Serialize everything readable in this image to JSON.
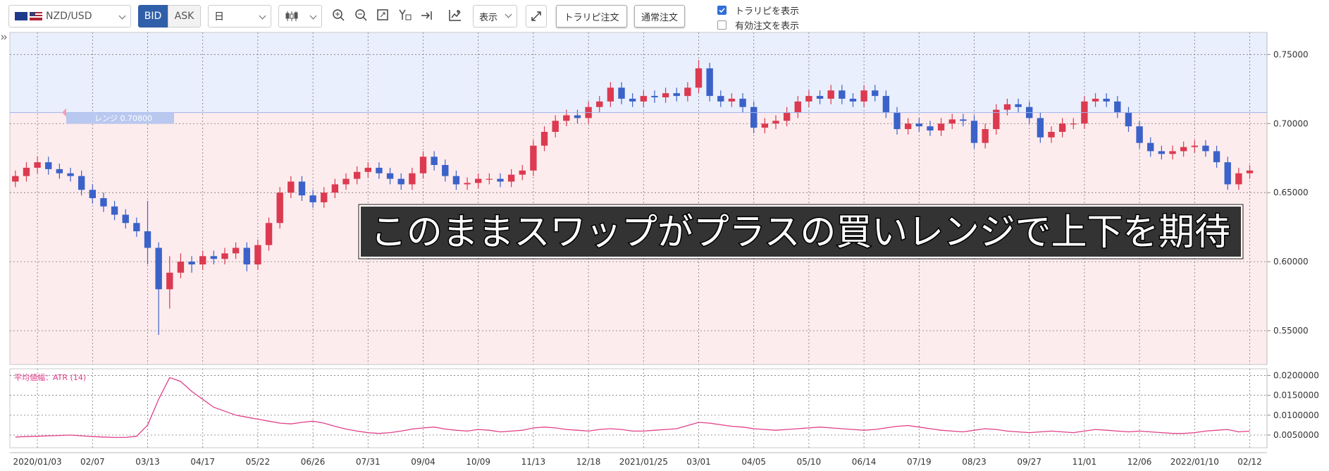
{
  "toolbar": {
    "pair": "NZD/USD",
    "bid": "BID",
    "ask": "ASK",
    "timeframe": "日",
    "display": "表示",
    "trarepi_order": "トラリピ注文",
    "normal_order": "通常注文",
    "options": [
      {
        "label": "トラリピを表示",
        "checked": true
      },
      {
        "label": "有効注文を表示",
        "checked": false
      }
    ]
  },
  "chart_data": [
    {
      "type": "candlestick",
      "annotation": "このままスワップがプラスの買いレンジで上下を期待",
      "range": {
        "value": 0.708,
        "label": "レンジ 0.70800"
      },
      "above_color": "#e9effc",
      "below_color": "#fdecee",
      "up_color": "#dc3a50",
      "down_color": "#3b62c9",
      "ylim": [
        0.5255,
        0.766
      ],
      "yticks": [
        {
          "value": 0.55,
          "label": "0.55000"
        },
        {
          "value": 0.6,
          "label": "0.60000"
        },
        {
          "value": 0.65,
          "label": "0.65000"
        },
        {
          "value": 0.7,
          "label": "0.70000"
        },
        {
          "value": 0.75,
          "label": "0.75000"
        }
      ],
      "grid": true,
      "categories": [
        null,
        null,
        "2020/01/03",
        null,
        null,
        null,
        null,
        "02/07",
        null,
        null,
        null,
        null,
        "03/13",
        null,
        null,
        null,
        null,
        "04/17",
        null,
        null,
        null,
        null,
        "05/22",
        null,
        null,
        null,
        null,
        "06/26",
        null,
        null,
        null,
        null,
        "07/31",
        null,
        null,
        null,
        null,
        "09/04",
        null,
        null,
        null,
        null,
        "10/09",
        null,
        null,
        null,
        null,
        "11/13",
        null,
        null,
        null,
        null,
        "12/18",
        null,
        null,
        null,
        null,
        "2021/01/25",
        null,
        null,
        null,
        null,
        "03/01",
        null,
        null,
        null,
        null,
        "04/05",
        null,
        null,
        null,
        null,
        "05/10",
        null,
        null,
        null,
        null,
        "06/14",
        null,
        null,
        null,
        null,
        "07/19",
        null,
        null,
        null,
        null,
        "08/23",
        null,
        null,
        null,
        null,
        "09/27",
        null,
        null,
        null,
        null,
        "11/01",
        null,
        null,
        null,
        null,
        "12/06",
        null,
        null,
        null,
        null,
        "2022/01/10",
        null,
        null,
        null,
        null,
        "02/12"
      ],
      "open": [
        0.658,
        0.662,
        0.668,
        0.672,
        0.667,
        0.664,
        0.662,
        0.652,
        0.646,
        0.64,
        0.634,
        0.628,
        0.622,
        0.61,
        0.58,
        0.592,
        0.6,
        0.598,
        0.604,
        0.602,
        0.606,
        0.61,
        0.598,
        0.612,
        0.628,
        0.65,
        0.658,
        0.648,
        0.643,
        0.65,
        0.656,
        0.66,
        0.665,
        0.668,
        0.664,
        0.66,
        0.656,
        0.664,
        0.676,
        0.67,
        0.662,
        0.656,
        0.657,
        0.66,
        0.66,
        0.658,
        0.663,
        0.666,
        0.684,
        0.694,
        0.702,
        0.706,
        0.704,
        0.712,
        0.716,
        0.726,
        0.718,
        0.716,
        0.72,
        0.719,
        0.722,
        0.72,
        0.726,
        0.74,
        0.72,
        0.716,
        0.718,
        0.712,
        0.697,
        0.7,
        0.702,
        0.708,
        0.716,
        0.72,
        0.718,
        0.724,
        0.718,
        0.716,
        0.724,
        0.72,
        0.708,
        0.696,
        0.7,
        0.698,
        0.695,
        0.7,
        0.703,
        0.702,
        0.686,
        0.696,
        0.71,
        0.714,
        0.712,
        0.704,
        0.69,
        0.694,
        0.7,
        0.7,
        0.716,
        0.718,
        0.716,
        0.708,
        0.698,
        0.686,
        0.68,
        0.678,
        0.68,
        0.683,
        0.684,
        0.68,
        0.672,
        0.656,
        0.664
      ],
      "high": [
        0.666,
        0.672,
        0.676,
        0.676,
        0.671,
        0.668,
        0.666,
        0.656,
        0.65,
        0.644,
        0.638,
        0.632,
        0.644,
        0.614,
        0.604,
        0.606,
        0.604,
        0.608,
        0.608,
        0.61,
        0.614,
        0.614,
        0.616,
        0.632,
        0.654,
        0.662,
        0.662,
        0.652,
        0.654,
        0.66,
        0.664,
        0.669,
        0.672,
        0.672,
        0.668,
        0.664,
        0.668,
        0.68,
        0.68,
        0.674,
        0.666,
        0.661,
        0.664,
        0.664,
        0.664,
        0.667,
        0.67,
        0.688,
        0.698,
        0.706,
        0.71,
        0.71,
        0.716,
        0.72,
        0.73,
        0.73,
        0.722,
        0.724,
        0.724,
        0.726,
        0.726,
        0.73,
        0.746,
        0.744,
        0.724,
        0.722,
        0.722,
        0.716,
        0.704,
        0.706,
        0.712,
        0.72,
        0.724,
        0.724,
        0.728,
        0.728,
        0.722,
        0.728,
        0.728,
        0.724,
        0.712,
        0.704,
        0.704,
        0.702,
        0.704,
        0.707,
        0.707,
        0.706,
        0.7,
        0.714,
        0.718,
        0.718,
        0.716,
        0.708,
        0.698,
        0.704,
        0.704,
        0.72,
        0.722,
        0.722,
        0.72,
        0.712,
        0.702,
        0.69,
        0.684,
        0.684,
        0.687,
        0.688,
        0.688,
        0.684,
        0.676,
        0.668,
        0.67
      ],
      "low": [
        0.654,
        0.658,
        0.664,
        0.663,
        0.66,
        0.658,
        0.648,
        0.642,
        0.636,
        0.63,
        0.624,
        0.618,
        0.598,
        0.547,
        0.566,
        0.588,
        0.592,
        0.594,
        0.598,
        0.598,
        0.602,
        0.593,
        0.594,
        0.608,
        0.624,
        0.646,
        0.644,
        0.639,
        0.639,
        0.646,
        0.652,
        0.656,
        0.661,
        0.66,
        0.656,
        0.652,
        0.652,
        0.66,
        0.666,
        0.658,
        0.652,
        0.652,
        0.653,
        0.656,
        0.654,
        0.654,
        0.659,
        0.662,
        0.68,
        0.69,
        0.698,
        0.7,
        0.7,
        0.708,
        0.712,
        0.714,
        0.712,
        0.712,
        0.715,
        0.715,
        0.716,
        0.716,
        0.722,
        0.716,
        0.712,
        0.712,
        0.708,
        0.693,
        0.693,
        0.696,
        0.698,
        0.704,
        0.712,
        0.714,
        0.714,
        0.714,
        0.712,
        0.712,
        0.716,
        0.704,
        0.692,
        0.692,
        0.694,
        0.691,
        0.691,
        0.696,
        0.698,
        0.682,
        0.682,
        0.692,
        0.706,
        0.708,
        0.7,
        0.686,
        0.686,
        0.69,
        0.696,
        0.696,
        0.712,
        0.712,
        0.704,
        0.694,
        0.682,
        0.676,
        0.674,
        0.674,
        0.676,
        0.679,
        0.676,
        0.668,
        0.652,
        0.652,
        0.66
      ],
      "close": [
        0.662,
        0.668,
        0.672,
        0.667,
        0.664,
        0.662,
        0.652,
        0.646,
        0.64,
        0.634,
        0.628,
        0.622,
        0.61,
        0.58,
        0.592,
        0.6,
        0.598,
        0.604,
        0.602,
        0.606,
        0.61,
        0.598,
        0.612,
        0.628,
        0.65,
        0.658,
        0.648,
        0.643,
        0.65,
        0.656,
        0.66,
        0.665,
        0.668,
        0.664,
        0.66,
        0.656,
        0.664,
        0.676,
        0.67,
        0.662,
        0.656,
        0.657,
        0.66,
        0.66,
        0.658,
        0.663,
        0.666,
        0.684,
        0.694,
        0.702,
        0.706,
        0.704,
        0.712,
        0.716,
        0.726,
        0.718,
        0.716,
        0.72,
        0.719,
        0.722,
        0.72,
        0.726,
        0.74,
        0.72,
        0.716,
        0.718,
        0.712,
        0.697,
        0.7,
        0.702,
        0.708,
        0.716,
        0.72,
        0.718,
        0.724,
        0.718,
        0.716,
        0.724,
        0.72,
        0.708,
        0.696,
        0.7,
        0.698,
        0.695,
        0.7,
        0.703,
        0.702,
        0.686,
        0.696,
        0.71,
        0.714,
        0.712,
        0.704,
        0.69,
        0.694,
        0.7,
        0.7,
        0.716,
        0.718,
        0.716,
        0.708,
        0.698,
        0.686,
        0.68,
        0.678,
        0.68,
        0.683,
        0.684,
        0.68,
        0.672,
        0.656,
        0.664,
        0.666
      ]
    },
    {
      "type": "line",
      "title": "平均値幅：ATR (14)",
      "color": "#e0408a",
      "ylim": [
        0.0018,
        0.0217
      ],
      "yticks": [
        {
          "value": 0.005,
          "label": "0.0050000"
        },
        {
          "value": 0.01,
          "label": "0.0100000"
        },
        {
          "value": 0.015,
          "label": "0.0150000"
        },
        {
          "value": 0.02,
          "label": "0.0200000"
        }
      ],
      "grid": true,
      "values": [
        0.0045,
        0.0046,
        0.0047,
        0.0048,
        0.0049,
        0.005,
        0.0048,
        0.0046,
        0.0045,
        0.0044,
        0.0044,
        0.0047,
        0.0075,
        0.014,
        0.0195,
        0.0185,
        0.016,
        0.014,
        0.012,
        0.011,
        0.01,
        0.0095,
        0.009,
        0.0085,
        0.008,
        0.0078,
        0.0082,
        0.0085,
        0.008,
        0.0072,
        0.0065,
        0.006,
        0.0056,
        0.0054,
        0.0056,
        0.006,
        0.0065,
        0.0068,
        0.007,
        0.0065,
        0.0062,
        0.006,
        0.0064,
        0.0062,
        0.0058,
        0.006,
        0.0062,
        0.0068,
        0.007,
        0.0068,
        0.0064,
        0.0062,
        0.006,
        0.0064,
        0.0066,
        0.0064,
        0.006,
        0.006,
        0.0062,
        0.0064,
        0.0066,
        0.0074,
        0.0082,
        0.008,
        0.0076,
        0.0072,
        0.007,
        0.0066,
        0.0064,
        0.0062,
        0.0064,
        0.0066,
        0.0068,
        0.007,
        0.0068,
        0.0066,
        0.0064,
        0.0062,
        0.0064,
        0.0068,
        0.0072,
        0.0074,
        0.007,
        0.0066,
        0.0062,
        0.006,
        0.0058,
        0.0062,
        0.0066,
        0.0064,
        0.006,
        0.0058,
        0.0056,
        0.0058,
        0.006,
        0.0058,
        0.0056,
        0.006,
        0.0064,
        0.0062,
        0.006,
        0.0058,
        0.006,
        0.0058,
        0.0056,
        0.0054,
        0.0054,
        0.0056,
        0.006,
        0.0062,
        0.0064,
        0.0058,
        0.006
      ]
    }
  ]
}
